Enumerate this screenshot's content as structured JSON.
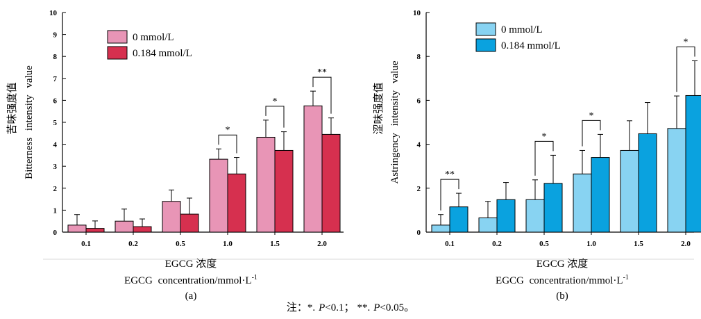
{
  "note": {
    "prefix": "注：",
    "star1": "*.",
    "p1_italic": "P",
    "p1_rest": "<0.1；",
    "star2": "**.",
    "p2_italic": "P",
    "p2_rest": "<0.05。"
  },
  "chart_data": [
    {
      "type": "bar",
      "panel_label": "(a)",
      "ylabel": "Bitterness intensity value",
      "ylabel_cn": "苦味强度值",
      "xlabel_cn": "EGCG 浓度",
      "xlabel": "EGCG concentration/mmol·L",
      "xlabel_superscript": "-1",
      "categories": [
        "0.1",
        "0.2",
        "0.5",
        "1.0",
        "1.5",
        "2.0"
      ],
      "ylim": [
        0,
        10
      ],
      "yticks": [
        0,
        1,
        2,
        3,
        4,
        5,
        6,
        7,
        8,
        9,
        10
      ],
      "legend_position": "top-left",
      "series": [
        {
          "name": "0 mmol/L",
          "color": "#e895b6",
          "values": [
            0.32,
            0.5,
            1.4,
            3.32,
            4.32,
            5.75
          ],
          "errors": [
            0.48,
            0.55,
            0.52,
            0.47,
            0.78,
            0.67
          ]
        },
        {
          "name": "0.184 mmol/L",
          "color": "#d6304f",
          "values": [
            0.17,
            0.25,
            0.82,
            2.65,
            3.72,
            4.45
          ],
          "errors": [
            0.34,
            0.35,
            0.73,
            0.75,
            0.85,
            0.75
          ]
        }
      ],
      "significance": [
        {
          "category": "1.0",
          "label": "*"
        },
        {
          "category": "1.5",
          "label": "*"
        },
        {
          "category": "2.0",
          "label": "**"
        }
      ]
    },
    {
      "type": "bar",
      "panel_label": "(b)",
      "ylabel": "Astringency intensity value",
      "ylabel_cn": "涩味强度值",
      "xlabel_cn": "EGCG 浓度",
      "xlabel": "EGCG concentration/mmol·L",
      "xlabel_superscript": "-1",
      "categories": [
        "0.1",
        "0.2",
        "0.5",
        "1.0",
        "1.5",
        "2.0"
      ],
      "ylim": [
        0,
        10
      ],
      "yticks": [
        0,
        2,
        4,
        6,
        8,
        10
      ],
      "legend_position": "top-left",
      "series": [
        {
          "name": "0 mmol/L",
          "color": "#88d3f2",
          "values": [
            0.32,
            0.65,
            1.48,
            2.65,
            3.72,
            4.72
          ],
          "errors": [
            0.48,
            0.75,
            0.9,
            1.07,
            1.35,
            1.48
          ]
        },
        {
          "name": "0.184 mmol/L",
          "color": "#0aa2df",
          "values": [
            1.15,
            1.48,
            2.22,
            3.4,
            4.48,
            6.22
          ],
          "errors": [
            0.62,
            0.78,
            1.28,
            1.05,
            1.42,
            1.58
          ]
        }
      ],
      "significance": [
        {
          "category": "0.1",
          "label": "**"
        },
        {
          "category": "0.5",
          "label": "*"
        },
        {
          "category": "1.0",
          "label": "*"
        },
        {
          "category": "2.0",
          "label": "*"
        }
      ]
    }
  ]
}
